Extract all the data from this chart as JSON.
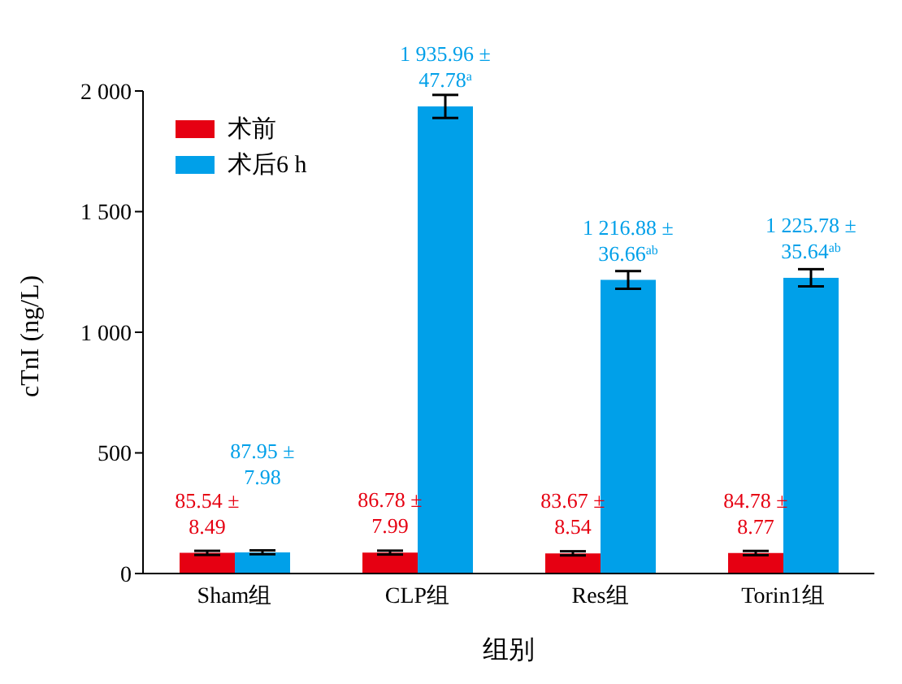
{
  "chart_data": {
    "type": "bar",
    "xlabel": "组别",
    "ylabel": "cTnI (ng/L)",
    "categories": [
      "Sham组",
      "CLP组",
      "Res组",
      "Torin1组"
    ],
    "series": [
      {
        "name": "术前",
        "color": "#e60012",
        "values": [
          85.54,
          86.78,
          83.67,
          84.78
        ],
        "errors": [
          8.49,
          7.99,
          8.54,
          8.77
        ],
        "value_labels": [
          "85.54 ± 8.49",
          "86.78 ± 7.99",
          "83.67 ± 8.54",
          "84.78 ± 8.77"
        ]
      },
      {
        "name": "术后6 h",
        "color": "#00a0e9",
        "values": [
          87.95,
          1935.96,
          1216.88,
          1225.78
        ],
        "errors": [
          7.98,
          47.78,
          36.66,
          35.64
        ],
        "value_labels": [
          "87.95 ± 7.98",
          "1 935.96 ± 47.78$^{a}$",
          "1 216.88 ± 36.66$^{ab}$",
          "1 225.78 ± 35.64$^{ab}$"
        ]
      }
    ],
    "ylim": [
      0,
      2000
    ],
    "yticks": [
      0,
      500,
      {
        "value": 1000,
        "label": "1 000"
      },
      {
        "value": 1500,
        "label": "1 500"
      },
      {
        "value": 2000,
        "label": "2 000"
      }
    ],
    "grid": false,
    "legend": "top left"
  }
}
